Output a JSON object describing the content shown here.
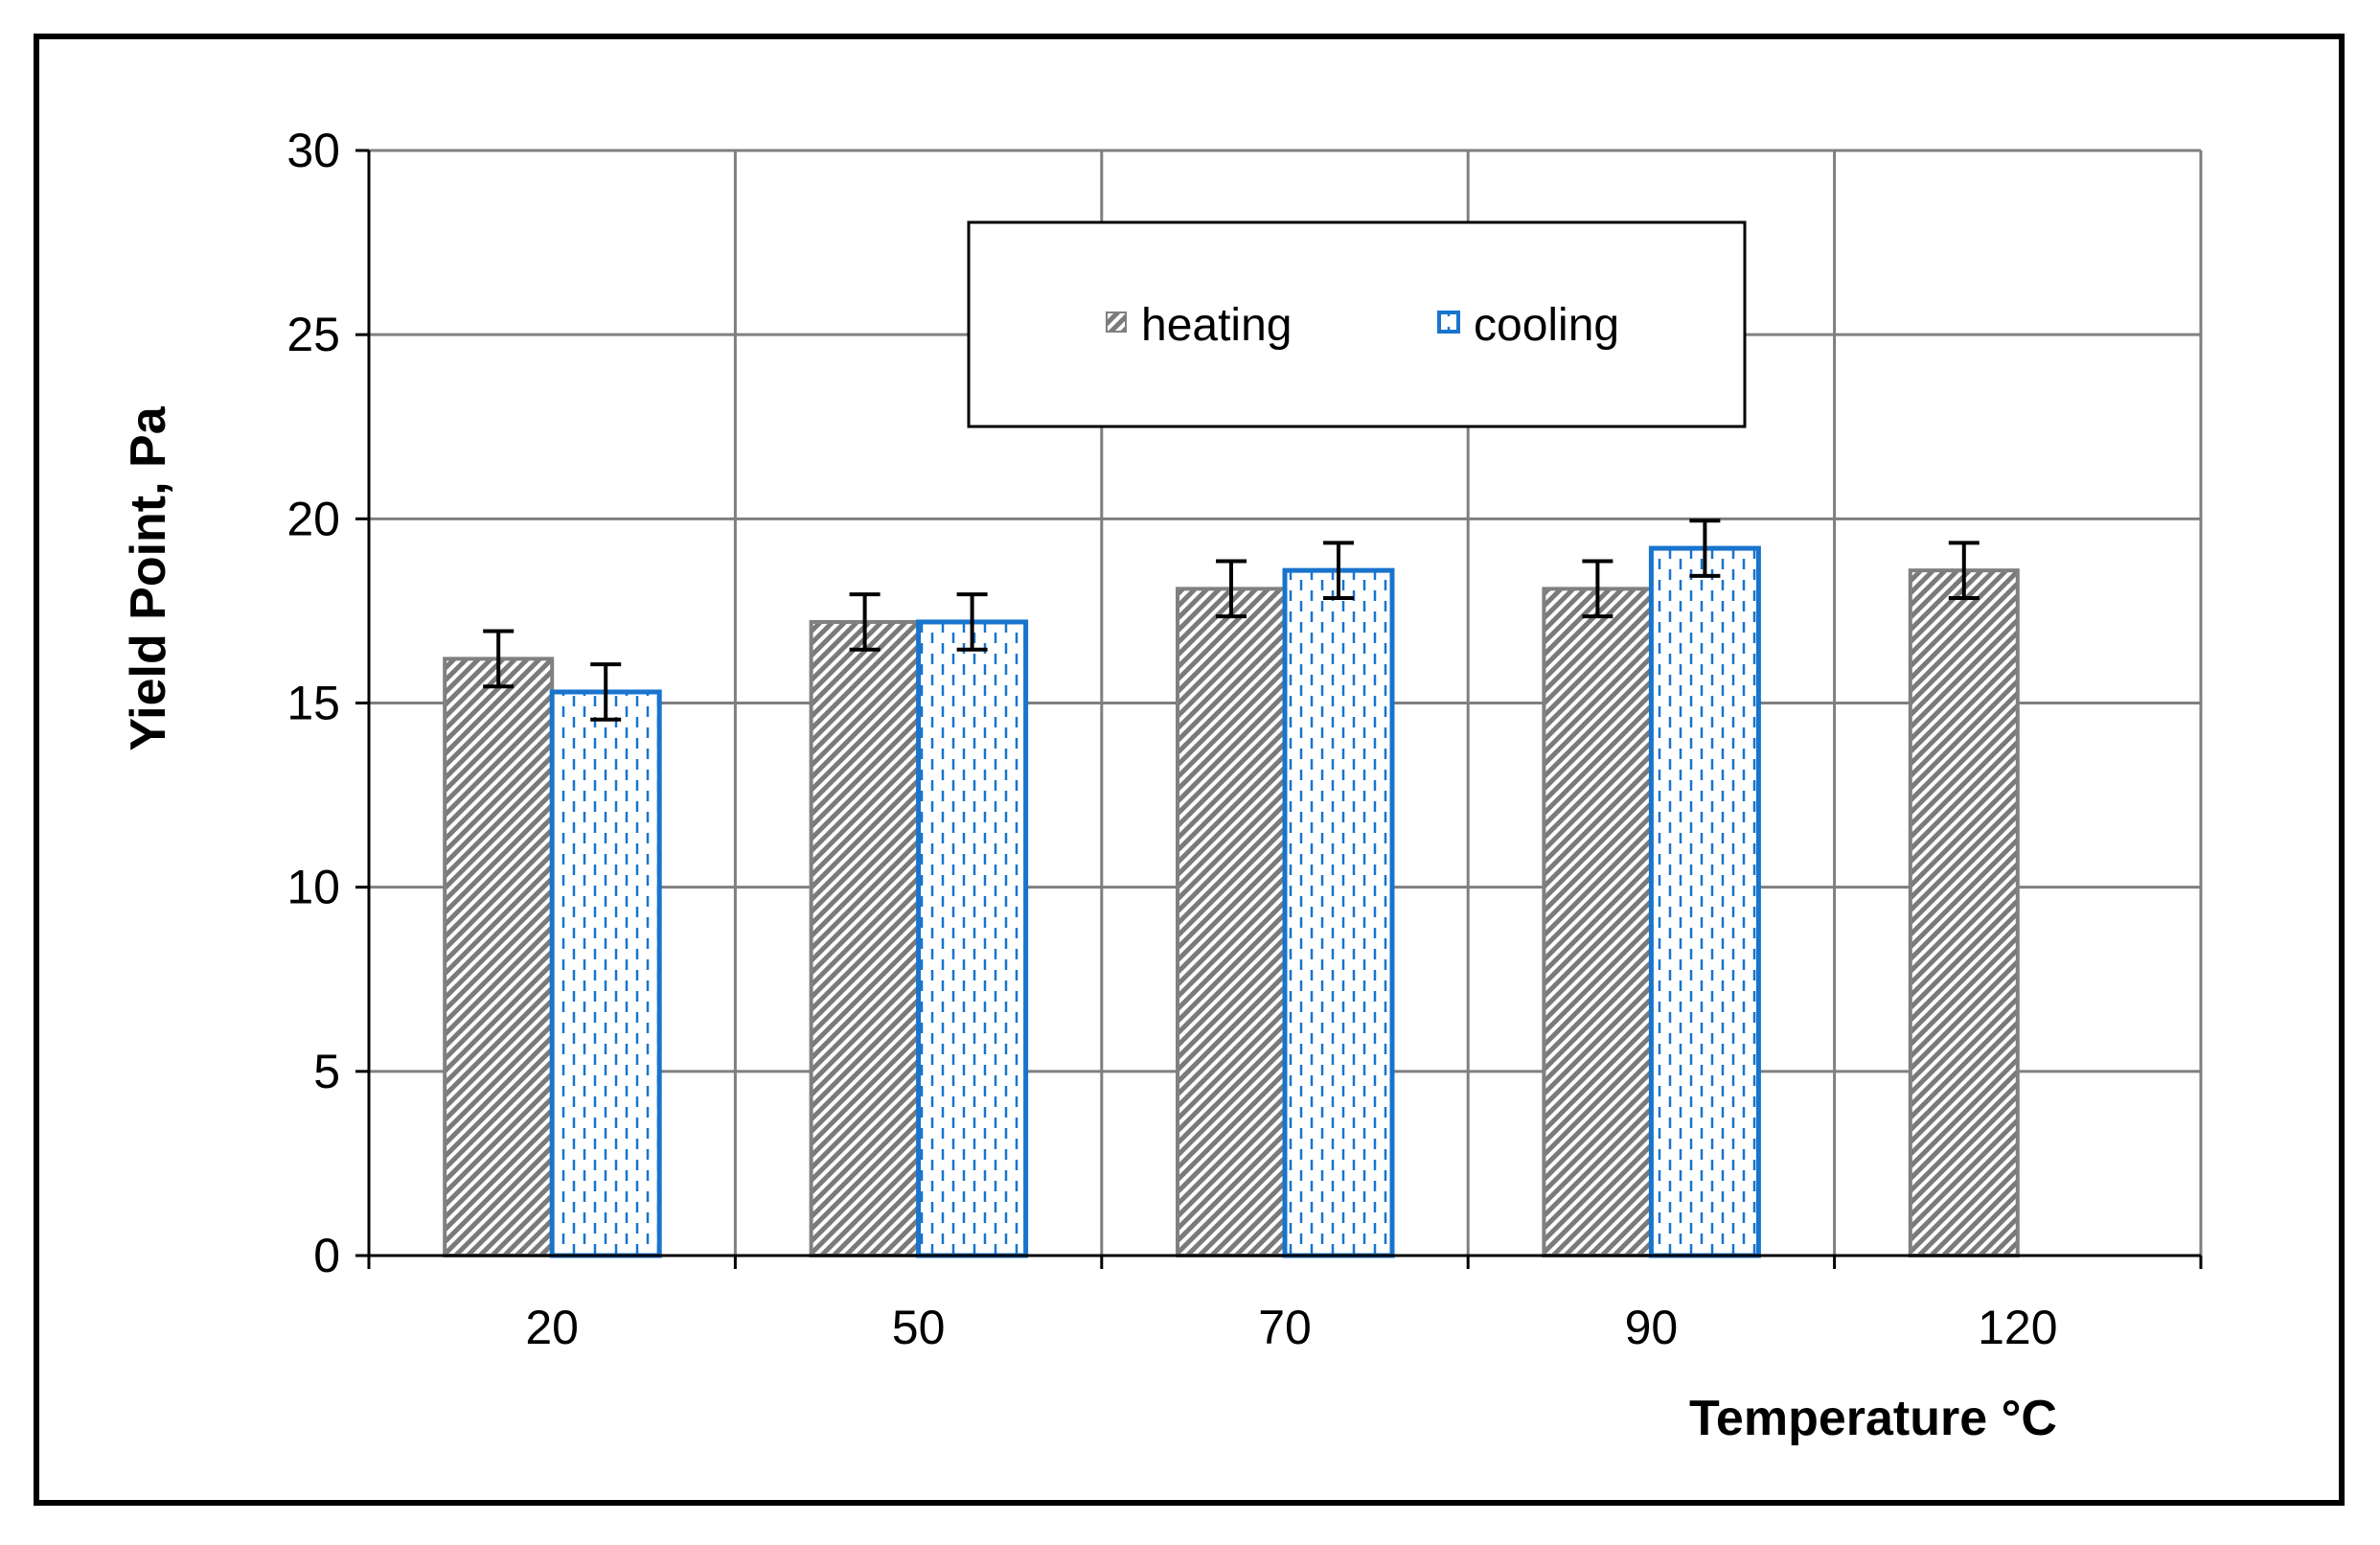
{
  "chart_data": {
    "type": "bar",
    "title": "",
    "xlabel": "Temperature °C",
    "ylabel": "Yield Point, Pa",
    "ylim": [
      0,
      30
    ],
    "yticks": [
      0,
      5,
      10,
      15,
      20,
      25,
      30
    ],
    "grid": true,
    "legend_position": "top-center",
    "categories": [
      "20",
      "50",
      "70",
      "90",
      "120"
    ],
    "series": [
      {
        "name": "heating",
        "values": [
          16.2,
          17.2,
          18.1,
          18.1,
          18.6
        ],
        "errors": [
          0.75,
          0.75,
          0.75,
          0.75,
          0.75
        ],
        "color": "#808080",
        "pattern": "diagonal-hatch"
      },
      {
        "name": "cooling",
        "values": [
          15.3,
          17.2,
          18.6,
          19.2,
          null
        ],
        "errors": [
          0.75,
          0.75,
          0.75,
          0.75,
          null
        ],
        "color": "#1874cd",
        "pattern": "dashed-vertical"
      }
    ]
  },
  "colors": {
    "grid": "#7f7f7f",
    "axis": "#000000",
    "error_bar": "#000000"
  }
}
